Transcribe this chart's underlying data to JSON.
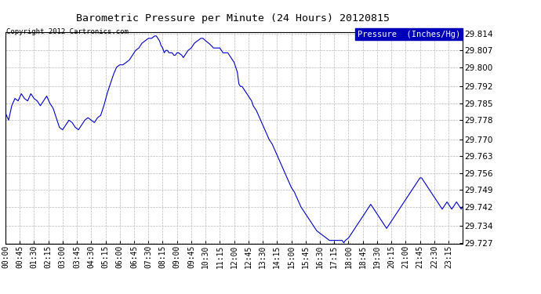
{
  "title": "Barometric Pressure per Minute (24 Hours) 20120815",
  "copyright": "Copyright 2012 Cartronics.com",
  "legend_label": "Pressure  (Inches/Hg)",
  "legend_bg": "#0000BB",
  "legend_fg": "#FFFFFF",
  "line_color": "#0000CC",
  "bg_color": "#FFFFFF",
  "grid_color": "#BBBBBB",
  "ylim": [
    29.727,
    29.814
  ],
  "yticks": [
    29.727,
    29.734,
    29.742,
    29.749,
    29.756,
    29.763,
    29.77,
    29.778,
    29.785,
    29.792,
    29.8,
    29.807,
    29.814
  ],
  "xtick_labels": [
    "00:00",
    "00:45",
    "01:30",
    "02:15",
    "03:00",
    "03:45",
    "04:30",
    "05:15",
    "06:00",
    "06:45",
    "07:30",
    "08:15",
    "09:00",
    "09:45",
    "10:30",
    "11:15",
    "12:00",
    "12:45",
    "13:30",
    "14:15",
    "15:00",
    "15:45",
    "16:30",
    "17:15",
    "18:00",
    "18:45",
    "19:30",
    "20:15",
    "21:00",
    "21:45",
    "22:30",
    "23:15"
  ],
  "waypoints": [
    [
      0,
      29.781
    ],
    [
      10,
      29.778
    ],
    [
      20,
      29.784
    ],
    [
      30,
      29.787
    ],
    [
      40,
      29.786
    ],
    [
      50,
      29.789
    ],
    [
      60,
      29.787
    ],
    [
      70,
      29.786
    ],
    [
      80,
      29.789
    ],
    [
      90,
      29.787
    ],
    [
      100,
      29.786
    ],
    [
      110,
      29.784
    ],
    [
      120,
      29.786
    ],
    [
      130,
      29.788
    ],
    [
      140,
      29.785
    ],
    [
      150,
      29.783
    ],
    [
      160,
      29.779
    ],
    [
      170,
      29.775
    ],
    [
      180,
      29.774
    ],
    [
      190,
      29.776
    ],
    [
      200,
      29.778
    ],
    [
      210,
      29.777
    ],
    [
      220,
      29.775
    ],
    [
      230,
      29.774
    ],
    [
      240,
      29.776
    ],
    [
      250,
      29.778
    ],
    [
      260,
      29.779
    ],
    [
      270,
      29.778
    ],
    [
      280,
      29.777
    ],
    [
      290,
      29.779
    ],
    [
      300,
      29.78
    ],
    [
      310,
      29.784
    ],
    [
      320,
      29.789
    ],
    [
      330,
      29.793
    ],
    [
      340,
      29.797
    ],
    [
      350,
      29.8
    ],
    [
      360,
      29.801
    ],
    [
      370,
      29.801
    ],
    [
      380,
      29.802
    ],
    [
      390,
      29.803
    ],
    [
      400,
      29.805
    ],
    [
      410,
      29.807
    ],
    [
      420,
      29.808
    ],
    [
      430,
      29.81
    ],
    [
      440,
      29.811
    ],
    [
      450,
      29.812
    ],
    [
      460,
      29.812
    ],
    [
      470,
      29.813
    ],
    [
      475,
      29.813
    ],
    [
      480,
      29.812
    ],
    [
      485,
      29.811
    ],
    [
      490,
      29.809
    ],
    [
      495,
      29.808
    ],
    [
      500,
      29.806
    ],
    [
      505,
      29.807
    ],
    [
      510,
      29.807
    ],
    [
      515,
      29.806
    ],
    [
      520,
      29.806
    ],
    [
      525,
      29.806
    ],
    [
      530,
      29.805
    ],
    [
      535,
      29.805
    ],
    [
      540,
      29.806
    ],
    [
      545,
      29.806
    ],
    [
      555,
      29.805
    ],
    [
      560,
      29.804
    ],
    [
      565,
      29.805
    ],
    [
      575,
      29.807
    ],
    [
      585,
      29.808
    ],
    [
      595,
      29.81
    ],
    [
      605,
      29.811
    ],
    [
      615,
      29.812
    ],
    [
      622,
      29.812
    ],
    [
      630,
      29.811
    ],
    [
      640,
      29.81
    ],
    [
      648,
      29.809
    ],
    [
      655,
      29.808
    ],
    [
      660,
      29.808
    ],
    [
      670,
      29.808
    ],
    [
      675,
      29.808
    ],
    [
      680,
      29.807
    ],
    [
      685,
      29.806
    ],
    [
      690,
      29.806
    ],
    [
      700,
      29.806
    ],
    [
      705,
      29.805
    ],
    [
      710,
      29.804
    ],
    [
      715,
      29.803
    ],
    [
      720,
      29.802
    ],
    [
      725,
      29.8
    ],
    [
      730,
      29.798
    ],
    [
      735,
      29.793
    ],
    [
      740,
      29.792
    ],
    [
      745,
      29.792
    ],
    [
      750,
      29.791
    ],
    [
      755,
      29.79
    ],
    [
      760,
      29.789
    ],
    [
      765,
      29.788
    ],
    [
      770,
      29.787
    ],
    [
      775,
      29.786
    ],
    [
      780,
      29.784
    ],
    [
      790,
      29.782
    ],
    [
      800,
      29.779
    ],
    [
      810,
      29.776
    ],
    [
      820,
      29.773
    ],
    [
      830,
      29.77
    ],
    [
      840,
      29.768
    ],
    [
      850,
      29.765
    ],
    [
      860,
      29.762
    ],
    [
      870,
      29.759
    ],
    [
      880,
      29.756
    ],
    [
      890,
      29.753
    ],
    [
      900,
      29.75
    ],
    [
      910,
      29.748
    ],
    [
      920,
      29.745
    ],
    [
      930,
      29.742
    ],
    [
      940,
      29.74
    ],
    [
      950,
      29.738
    ],
    [
      960,
      29.736
    ],
    [
      970,
      29.734
    ],
    [
      980,
      29.732
    ],
    [
      990,
      29.731
    ],
    [
      1000,
      29.73
    ],
    [
      1010,
      29.729
    ],
    [
      1020,
      29.728
    ],
    [
      1030,
      29.728
    ],
    [
      1040,
      29.728
    ],
    [
      1050,
      29.728
    ],
    [
      1060,
      29.728
    ],
    [
      1065,
      29.727
    ],
    [
      1070,
      29.728
    ],
    [
      1080,
      29.729
    ],
    [
      1085,
      29.73
    ],
    [
      1090,
      29.731
    ],
    [
      1095,
      29.732
    ],
    [
      1100,
      29.733
    ],
    [
      1105,
      29.734
    ],
    [
      1110,
      29.735
    ],
    [
      1115,
      29.736
    ],
    [
      1120,
      29.737
    ],
    [
      1125,
      29.738
    ],
    [
      1130,
      29.739
    ],
    [
      1135,
      29.74
    ],
    [
      1140,
      29.741
    ],
    [
      1145,
      29.742
    ],
    [
      1150,
      29.743
    ],
    [
      1155,
      29.742
    ],
    [
      1160,
      29.741
    ],
    [
      1165,
      29.74
    ],
    [
      1170,
      29.739
    ],
    [
      1175,
      29.738
    ],
    [
      1180,
      29.737
    ],
    [
      1185,
      29.736
    ],
    [
      1190,
      29.735
    ],
    [
      1195,
      29.734
    ],
    [
      1200,
      29.733
    ],
    [
      1205,
      29.734
    ],
    [
      1210,
      29.735
    ],
    [
      1215,
      29.736
    ],
    [
      1220,
      29.737
    ],
    [
      1225,
      29.738
    ],
    [
      1230,
      29.739
    ],
    [
      1235,
      29.74
    ],
    [
      1240,
      29.741
    ],
    [
      1245,
      29.742
    ],
    [
      1250,
      29.743
    ],
    [
      1255,
      29.744
    ],
    [
      1260,
      29.745
    ],
    [
      1265,
      29.746
    ],
    [
      1270,
      29.747
    ],
    [
      1275,
      29.748
    ],
    [
      1280,
      29.749
    ],
    [
      1285,
      29.75
    ],
    [
      1290,
      29.751
    ],
    [
      1295,
      29.752
    ],
    [
      1300,
      29.753
    ],
    [
      1305,
      29.754
    ],
    [
      1310,
      29.754
    ],
    [
      1315,
      29.753
    ],
    [
      1320,
      29.752
    ],
    [
      1325,
      29.751
    ],
    [
      1330,
      29.75
    ],
    [
      1335,
      29.749
    ],
    [
      1340,
      29.748
    ],
    [
      1345,
      29.747
    ],
    [
      1350,
      29.746
    ],
    [
      1355,
      29.745
    ],
    [
      1360,
      29.744
    ],
    [
      1365,
      29.743
    ],
    [
      1370,
      29.742
    ],
    [
      1375,
      29.741
    ],
    [
      1380,
      29.742
    ],
    [
      1385,
      29.743
    ],
    [
      1390,
      29.744
    ],
    [
      1395,
      29.743
    ],
    [
      1400,
      29.742
    ],
    [
      1405,
      29.741
    ],
    [
      1410,
      29.742
    ],
    [
      1415,
      29.743
    ],
    [
      1420,
      29.744
    ],
    [
      1425,
      29.743
    ],
    [
      1430,
      29.742
    ],
    [
      1435,
      29.741
    ],
    [
      1439,
      29.742
    ]
  ]
}
